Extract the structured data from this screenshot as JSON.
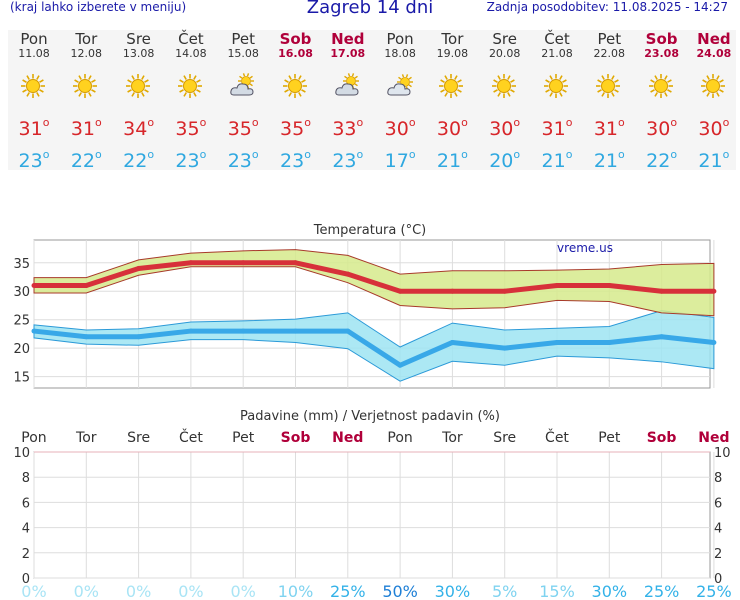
{
  "header": {
    "left_link": "(kraj lahko izberete v meniju)",
    "title": "Zagreb 14 dni",
    "updated": "Zadnja posodobitev: 11.08.2025 - 14:27"
  },
  "colors": {
    "max_line": "#d7303a",
    "max_band": "#d6ea8c",
    "min_line": "#38a8e8",
    "min_band": "#9ee4f2",
    "weekend": "#b0003a"
  },
  "forecast": [
    {
      "day": "Pon",
      "date": "11.08",
      "icon": "sun-icon",
      "max": "31",
      "min": "23",
      "weekend": false,
      "precip_prob": "0%"
    },
    {
      "day": "Tor",
      "date": "12.08",
      "icon": "sun-icon",
      "max": "31",
      "min": "22",
      "weekend": false,
      "precip_prob": "0%"
    },
    {
      "day": "Sre",
      "date": "13.08",
      "icon": "sun-icon",
      "max": "34",
      "min": "22",
      "weekend": false,
      "precip_prob": "0%"
    },
    {
      "day": "Čet",
      "date": "14.08",
      "icon": "sun-icon",
      "max": "35",
      "min": "23",
      "weekend": false,
      "precip_prob": "0%"
    },
    {
      "day": "Pet",
      "date": "15.08",
      "icon": "partly-cloudy-icon",
      "max": "35",
      "min": "23",
      "weekend": false,
      "precip_prob": "0%"
    },
    {
      "day": "Sob",
      "date": "16.08",
      "icon": "sun-icon",
      "max": "35",
      "min": "23",
      "weekend": true,
      "precip_prob": "10%"
    },
    {
      "day": "Ned",
      "date": "17.08",
      "icon": "partly-cloudy-icon",
      "max": "33",
      "min": "23",
      "weekend": true,
      "precip_prob": "25%"
    },
    {
      "day": "Pon",
      "date": "18.08",
      "icon": "sun-cloud-icon",
      "max": "30",
      "min": "17",
      "weekend": false,
      "precip_prob": "50%"
    },
    {
      "day": "Tor",
      "date": "19.08",
      "icon": "sun-icon",
      "max": "30",
      "min": "21",
      "weekend": false,
      "precip_prob": "30%"
    },
    {
      "day": "Sre",
      "date": "20.08",
      "icon": "sun-icon",
      "max": "30",
      "min": "20",
      "weekend": false,
      "precip_prob": "5%"
    },
    {
      "day": "Čet",
      "date": "21.08",
      "icon": "sun-icon",
      "max": "31",
      "min": "21",
      "weekend": false,
      "precip_prob": "15%"
    },
    {
      "day": "Pet",
      "date": "22.08",
      "icon": "sun-icon",
      "max": "31",
      "min": "21",
      "weekend": false,
      "precip_prob": "30%"
    },
    {
      "day": "Sob",
      "date": "23.08",
      "icon": "sun-icon",
      "max": "30",
      "min": "22",
      "weekend": true,
      "precip_prob": "25%"
    },
    {
      "day": "Ned",
      "date": "24.08",
      "icon": "sun-icon",
      "max": "30",
      "min": "21",
      "weekend": true,
      "precip_prob": "25%"
    }
  ],
  "chart_data": [
    {
      "type": "line",
      "title": "Temperatura (°C)",
      "watermark": "vreme.us",
      "ylim": [
        13,
        39
      ],
      "yticks": [
        15,
        20,
        25,
        30,
        35
      ],
      "grid": true,
      "categories": [
        "Pon",
        "Tor",
        "Sre",
        "Čet",
        "Pet",
        "Sob",
        "Ned",
        "Pon",
        "Tor",
        "Sre",
        "Čet",
        "Pet",
        "Sob",
        "Ned"
      ],
      "series": [
        {
          "kind": "max",
          "values": [
            31,
            31,
            34,
            35,
            35,
            35,
            33,
            30,
            30,
            30,
            31,
            31,
            30,
            30
          ],
          "band_upper": [
            32.4,
            32.4,
            35.5,
            36.7,
            37.1,
            37.3,
            36.3,
            33,
            33.6,
            33.6,
            33.7,
            33.9,
            34.7,
            34.9
          ],
          "band_lower": [
            29.7,
            29.7,
            32.8,
            34.3,
            34.3,
            34.3,
            31.5,
            27.5,
            26.9,
            27.1,
            28.4,
            28.2,
            26.2,
            25.7
          ]
        },
        {
          "kind": "min",
          "values": [
            23,
            22,
            22,
            23,
            23,
            23,
            23,
            17,
            21,
            20,
            21,
            21,
            22,
            21
          ],
          "band_upper": [
            24.1,
            23.2,
            23.4,
            24.6,
            24.8,
            25.1,
            26.2,
            20.2,
            24.4,
            23.2,
            23.5,
            23.8,
            26.6,
            25.4
          ],
          "band_lower": [
            21.8,
            20.7,
            20.5,
            21.5,
            21.5,
            21,
            19.9,
            14.2,
            17.7,
            17,
            18.6,
            18.3,
            17.6,
            16.4
          ]
        }
      ]
    },
    {
      "type": "bar",
      "title": "Padavine (mm) / Verjetnost padavin (%)",
      "ylim": [
        0,
        10
      ],
      "yticks": [
        0,
        2,
        4,
        6,
        8,
        10
      ],
      "categories": [
        "Pon",
        "Tor",
        "Sre",
        "Čet",
        "Pet",
        "Sob",
        "Ned",
        "Pon",
        "Tor",
        "Sre",
        "Čet",
        "Pet",
        "Sob",
        "Ned"
      ],
      "values": [
        0,
        0,
        0,
        0,
        0,
        0,
        0,
        0,
        0,
        0,
        0,
        0,
        0,
        0
      ],
      "probabilities": [
        "0%",
        "0%",
        "0%",
        "0%",
        "0%",
        "10%",
        "25%",
        "50%",
        "30%",
        "5%",
        "15%",
        "30%",
        "25%",
        "25%"
      ]
    }
  ]
}
